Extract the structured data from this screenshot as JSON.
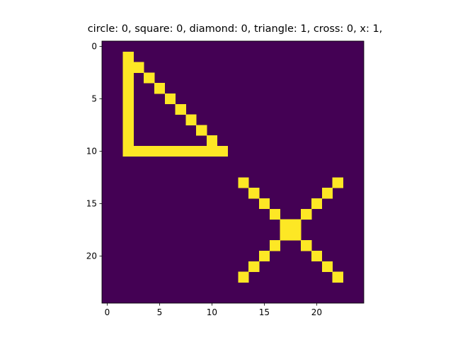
{
  "chart_data": {
    "type": "heatmap",
    "title": "circle: 0, square: 0, diamond: 0, triangle: 1, cross: 0, x: 1,",
    "xlabel": "",
    "ylabel": "",
    "grid_size": [
      25,
      25
    ],
    "xlim": [
      -0.5,
      24.5
    ],
    "ylim": [
      24.5,
      -0.5
    ],
    "xticks": [
      0,
      5,
      10,
      15,
      20
    ],
    "yticks": [
      0,
      5,
      10,
      15,
      20
    ],
    "grid": false,
    "colors": {
      "background": "#440154",
      "foreground": "#fde725"
    },
    "on_cells": [
      [
        2,
        1
      ],
      [
        2,
        2
      ],
      [
        3,
        2
      ],
      [
        2,
        3
      ],
      [
        4,
        3
      ],
      [
        2,
        4
      ],
      [
        5,
        4
      ],
      [
        2,
        5
      ],
      [
        6,
        5
      ],
      [
        2,
        6
      ],
      [
        7,
        6
      ],
      [
        2,
        7
      ],
      [
        8,
        7
      ],
      [
        2,
        8
      ],
      [
        9,
        8
      ],
      [
        2,
        9
      ],
      [
        10,
        9
      ],
      [
        2,
        10
      ],
      [
        3,
        10
      ],
      [
        4,
        10
      ],
      [
        5,
        10
      ],
      [
        6,
        10
      ],
      [
        7,
        10
      ],
      [
        8,
        10
      ],
      [
        9,
        10
      ],
      [
        10,
        10
      ],
      [
        11,
        10
      ],
      [
        13,
        13
      ],
      [
        22,
        13
      ],
      [
        14,
        14
      ],
      [
        21,
        14
      ],
      [
        15,
        15
      ],
      [
        20,
        15
      ],
      [
        16,
        16
      ],
      [
        19,
        16
      ],
      [
        17,
        17
      ],
      [
        18,
        17
      ],
      [
        17,
        18
      ],
      [
        18,
        18
      ],
      [
        16,
        19
      ],
      [
        19,
        19
      ],
      [
        15,
        20
      ],
      [
        20,
        20
      ],
      [
        14,
        21
      ],
      [
        21,
        21
      ],
      [
        13,
        22
      ],
      [
        22,
        22
      ]
    ]
  }
}
